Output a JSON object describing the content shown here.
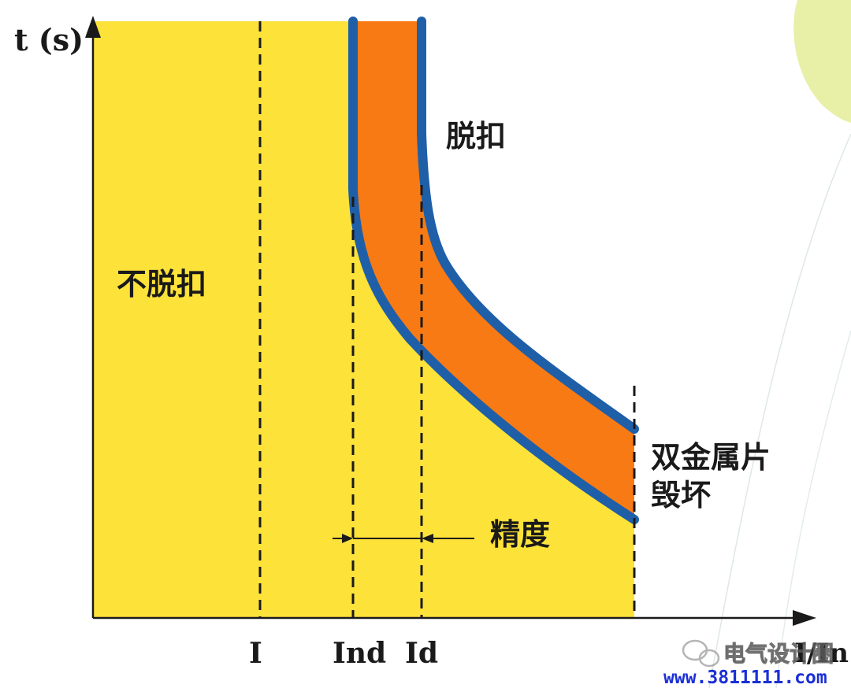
{
  "axes": {
    "y_label": "t (s)",
    "x_label": "I/In"
  },
  "x_ticks": {
    "i": "I",
    "ind": "Ind",
    "id": "Id"
  },
  "regions": {
    "no_trip": "不脱扣",
    "trip": "脱扣",
    "bimetal_damage_line1": "双金属片",
    "bimetal_damage_line2": "毁坏"
  },
  "annotations": {
    "accuracy": "精度"
  },
  "watermark": {
    "brand": "电气设计圈",
    "url": "www.3811111.com"
  },
  "colors": {
    "yellow_region": "#fde23a",
    "trip_band": "#f87a14",
    "band_outline": "#1f5fa8",
    "axis": "#1a1a1a",
    "leaf_accent": "#e8f0a8",
    "url_blue": "#1b2fd6"
  }
}
